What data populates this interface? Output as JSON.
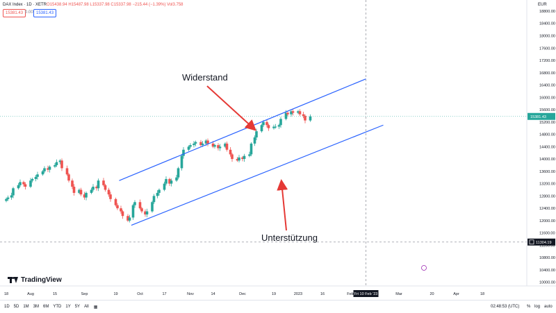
{
  "header": {
    "symbol": "DAX Index · 1D · XETR",
    "ohlc": "O15438.94 H15487.98 L15337.98 C15337.98 −215.44 (−1.39%) Vol3.758",
    "sell_price": "15381.43",
    "spread": "0.00",
    "buy_price": "15381.43",
    "currency": "EUR"
  },
  "annotations": {
    "resistance": "Widerstand",
    "support": "Unterstützung"
  },
  "price_tags": {
    "last": "15381.43",
    "line": "11304.19"
  },
  "crosshair_date": "Fri 10 Feb '23",
  "logo_text": "TradingView",
  "toolbar": {
    "timeframes": [
      "1D",
      "5D",
      "1M",
      "3M",
      "6M",
      "YTD",
      "1Y",
      "5Y",
      "All"
    ],
    "clock": "02:48:53 (UTC)",
    "percent": "%",
    "log": "log",
    "auto": "auto"
  },
  "colors": {
    "up": "#26a69a",
    "down": "#ef5350",
    "channel": "#2962ff",
    "arrow": "#e53935"
  },
  "chart_data": {
    "type": "candlestick",
    "y_ticks": [
      18800,
      18400,
      18000,
      17600,
      17200,
      16800,
      16400,
      16000,
      15600,
      15200,
      14800,
      14400,
      14000,
      13600,
      13200,
      12800,
      12400,
      12000,
      11600,
      11200,
      10800,
      10400,
      10000
    ],
    "y_range": [
      9880,
      19160
    ],
    "x_ticks": [
      "18",
      "Aug",
      "15",
      "Sep",
      "19",
      "Oct",
      "17",
      "Nov",
      "14",
      "Dec",
      "19",
      "2023",
      "16",
      "Feb",
      "Mar",
      "20",
      "Apr",
      "18"
    ],
    "series": [
      {
        "date": "2022-07-18",
        "values": [
          12700,
          12750,
          12820,
          13050,
          13150,
          13250,
          13180,
          13100,
          13300,
          13350,
          13420,
          13500,
          13600,
          13700,
          13650,
          13750,
          13800,
          13900,
          13950,
          13700,
          13500,
          13300,
          13100,
          12900,
          13000,
          12850,
          12750,
          12900,
          13000,
          13100,
          13050,
          13300,
          13150,
          13000,
          12850,
          12700,
          12500,
          12400,
          12300,
          12150,
          12000,
          12100,
          12500,
          12600,
          12400,
          12300,
          12200,
          12300,
          12600,
          12800,
          12900,
          13000,
          13200,
          13350,
          13200,
          13300,
          13400,
          13700,
          14100,
          14300,
          14400,
          14450,
          14500,
          14550,
          14450,
          14500,
          14600,
          14500,
          14400,
          14450,
          14350,
          14400,
          14500,
          14300,
          14150,
          14000,
          13950,
          14050,
          14000,
          14100,
          14150,
          14500,
          14700,
          14900,
          15100,
          15200,
          15100,
          15000,
          15050,
          15050,
          15100,
          15300,
          15500,
          15450,
          15550,
          15500,
          15550,
          15450,
          15400,
          15250,
          15380
        ]
      }
    ],
    "channel": {
      "upper": [
        {
          "date": "2022-09-21",
          "value": 13300
        },
        {
          "date": "2023-02-10",
          "value": 16600
        }
      ],
      "lower": [
        {
          "date": "2022-09-28",
          "value": 11850
        },
        {
          "date": "2023-02-20",
          "value": 15100
        }
      ]
    },
    "horizontal_line": 11304.19
  }
}
